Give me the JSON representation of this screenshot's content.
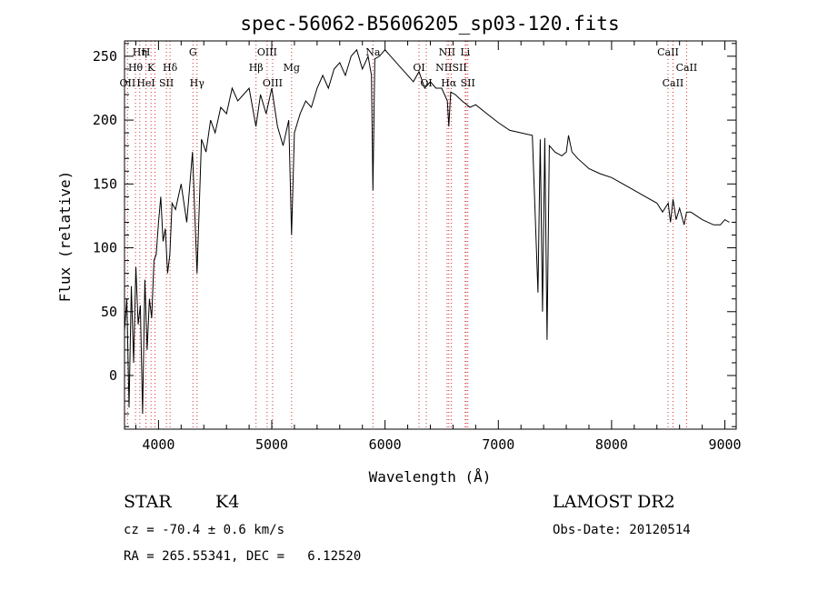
{
  "chart_data": {
    "type": "line",
    "title": "spec-56062-B5606205_sp03-120.fits",
    "xlabel": "Wavelength (Å)",
    "ylabel": "Flux (relative)",
    "xlim": [
      3700,
      9100
    ],
    "ylim": [
      -42,
      262
    ],
    "x_ticks": [
      4000,
      5000,
      6000,
      7000,
      8000,
      9000
    ],
    "y_ticks": [
      0,
      50,
      100,
      150,
      200,
      250
    ],
    "grid": false,
    "series": [
      {
        "x": [
          3700,
          3720,
          3740,
          3760,
          3780,
          3800,
          3820,
          3840,
          3860,
          3880,
          3900,
          3920,
          3940,
          3960,
          3980,
          4000,
          4020,
          4040,
          4060,
          4080,
          4100,
          4120,
          4150,
          4200,
          4250,
          4300,
          4340,
          4380,
          4420,
          4460,
          4500,
          4550,
          4600,
          4650,
          4700,
          4750,
          4800,
          4860,
          4900,
          4950,
          5000,
          5050,
          5100,
          5150,
          5175,
          5200,
          5250,
          5300,
          5350,
          5400,
          5450,
          5500,
          5550,
          5600,
          5650,
          5700,
          5750,
          5800,
          5850,
          5880,
          5893,
          5910,
          5950,
          6000,
          6050,
          6100,
          6150,
          6200,
          6250,
          6300,
          6350,
          6400,
          6450,
          6500,
          6550,
          6563,
          6580,
          6620,
          6680,
          6750,
          6800,
          6900,
          7000,
          7100,
          7200,
          7300,
          7350,
          7370,
          7390,
          7410,
          7430,
          7450,
          7500,
          7560,
          7600,
          7620,
          7650,
          7700,
          7800,
          7900,
          8000,
          8100,
          8200,
          8300,
          8400,
          8450,
          8500,
          8520,
          8542,
          8570,
          8600,
          8640,
          8662,
          8700,
          8800,
          8900,
          8960,
          9000,
          9040
        ],
        "y": [
          35,
          60,
          -25,
          70,
          10,
          85,
          40,
          55,
          -30,
          75,
          20,
          60,
          45,
          90,
          95,
          120,
          140,
          105,
          115,
          80,
          95,
          135,
          130,
          150,
          120,
          175,
          80,
          185,
          175,
          200,
          190,
          210,
          205,
          225,
          215,
          220,
          225,
          195,
          220,
          205,
          225,
          195,
          180,
          200,
          110,
          190,
          205,
          215,
          210,
          225,
          235,
          225,
          240,
          245,
          235,
          250,
          255,
          240,
          250,
          235,
          145,
          248,
          250,
          255,
          250,
          245,
          240,
          235,
          230,
          238,
          225,
          230,
          225,
          225,
          215,
          195,
          222,
          220,
          215,
          210,
          212,
          205,
          198,
          192,
          190,
          188,
          65,
          185,
          50,
          186,
          28,
          180,
          175,
          172,
          175,
          188,
          175,
          170,
          162,
          158,
          155,
          150,
          145,
          140,
          135,
          128,
          135,
          120,
          138,
          122,
          131,
          118,
          128,
          128,
          122,
          118,
          118,
          122,
          120
        ]
      }
    ],
    "spectral_lines": [
      {
        "label": "OII",
        "x": 3727
      },
      {
        "label": "Hη",
        "x": 3835
      },
      {
        "label": "H",
        "x": 3889
      },
      {
        "label": "Hθ",
        "x": 3797
      },
      {
        "label": "K",
        "x": 3934
      },
      {
        "label": "H",
        "x": 3969
      },
      {
        "label": "HeI",
        "x": 3889
      },
      {
        "label": "SII",
        "x": 4070
      },
      {
        "label": "Hδ",
        "x": 4102
      },
      {
        "label": "G",
        "x": 4304
      },
      {
        "label": "Hγ",
        "x": 4340
      },
      {
        "label": "OIII",
        "x": 4959
      },
      {
        "label": "Hβ",
        "x": 4861
      },
      {
        "label": "OIII",
        "x": 5007
      },
      {
        "label": "Mg",
        "x": 5175
      },
      {
        "label": "Na",
        "x": 5893
      },
      {
        "label": "OI",
        "x": 6300
      },
      {
        "label": "OI",
        "x": 6364
      },
      {
        "label": "NII",
        "x": 6548
      },
      {
        "label": "Hα",
        "x": 6563
      },
      {
        "label": "NII",
        "x": 6584
      },
      {
        "label": "Li",
        "x": 6708
      },
      {
        "label": "SII",
        "x": 6716
      },
      {
        "label": "SII",
        "x": 6731
      },
      {
        "label": "CaII",
        "x": 8498
      },
      {
        "label": "CaII",
        "x": 8542
      },
      {
        "label": "CaII",
        "x": 8662
      }
    ],
    "line_labels": [
      {
        "text": "Hη",
        "x": 3835,
        "row": 1
      },
      {
        "text": "H",
        "x": 3889,
        "row": 1
      },
      {
        "text": "G",
        "x": 4304,
        "row": 1
      },
      {
        "text": "OIII",
        "x": 4959,
        "row": 1
      },
      {
        "text": "Na",
        "x": 5893,
        "row": 1
      },
      {
        "text": "NII",
        "x": 6548,
        "row": 1
      },
      {
        "text": "Li",
        "x": 6708,
        "row": 1
      },
      {
        "text": "CaII",
        "x": 8498,
        "row": 1
      },
      {
        "text": "Hθ",
        "x": 3797,
        "row": 2
      },
      {
        "text": "K",
        "x": 3934,
        "row": 2
      },
      {
        "text": "Hδ",
        "x": 4102,
        "row": 2
      },
      {
        "text": "Hβ",
        "x": 4861,
        "row": 2
      },
      {
        "text": "Mg",
        "x": 5175,
        "row": 2
      },
      {
        "text": "OI",
        "x": 6300,
        "row": 2
      },
      {
        "text": "NIISII",
        "x": 6584,
        "row": 2
      },
      {
        "text": "CaII",
        "x": 8662,
        "row": 2
      },
      {
        "text": "OII",
        "x": 3727,
        "row": 3
      },
      {
        "text": "HeI",
        "x": 3889,
        "row": 3
      },
      {
        "text": "SII",
        "x": 4070,
        "row": 3
      },
      {
        "text": "Hγ",
        "x": 4340,
        "row": 3
      },
      {
        "text": "OIII",
        "x": 5007,
        "row": 3
      },
      {
        "text": "OI",
        "x": 6364,
        "row": 3
      },
      {
        "text": "Hα",
        "x": 6563,
        "row": 3
      },
      {
        "text": "SII",
        "x": 6731,
        "row": 3
      },
      {
        "text": "CaII",
        "x": 8542,
        "row": 3
      }
    ],
    "line_color": "#d03030"
  },
  "info": {
    "object_type": "STAR",
    "subclass": "K4",
    "survey": "LAMOST DR2",
    "redshift": "cz = -70.4 ± 0.6 km/s",
    "obs_date": "Obs-Date: 20120514",
    "coords": "RA = 265.55341, DEC =   6.12520"
  }
}
